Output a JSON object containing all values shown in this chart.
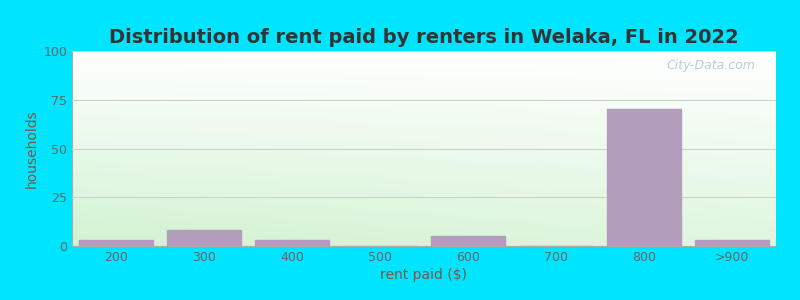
{
  "title": "Distribution of rent paid by renters in Welaka, FL in 2022",
  "xlabel": "rent paid ($)",
  "ylabel": "households",
  "categories": [
    "200",
    "300",
    "400",
    "500",
    "600",
    "700",
    "800",
    ">900"
  ],
  "values": [
    3,
    8,
    3,
    0,
    5,
    0,
    70,
    3
  ],
  "bar_color": "#b39dbd",
  "bar_edge_color": "#b39dbd",
  "ylim": [
    0,
    100
  ],
  "yticks": [
    0,
    25,
    50,
    75,
    100
  ],
  "bg_topleft": "#d4edd4",
  "bg_topright": "#e8f4f8",
  "bg_bottomleft": "#c8e6c9",
  "bg_bottomright": "#f0f8ff",
  "outer_background": "#00e5ff",
  "title_color": "#333333",
  "axis_label_color": "#795548",
  "tick_label_color": "#666666",
  "grid_color": "#cccccc",
  "watermark": "City-Data.com",
  "title_fontsize": 14,
  "label_fontsize": 10,
  "tick_fontsize": 9,
  "bar_width": 0.85
}
